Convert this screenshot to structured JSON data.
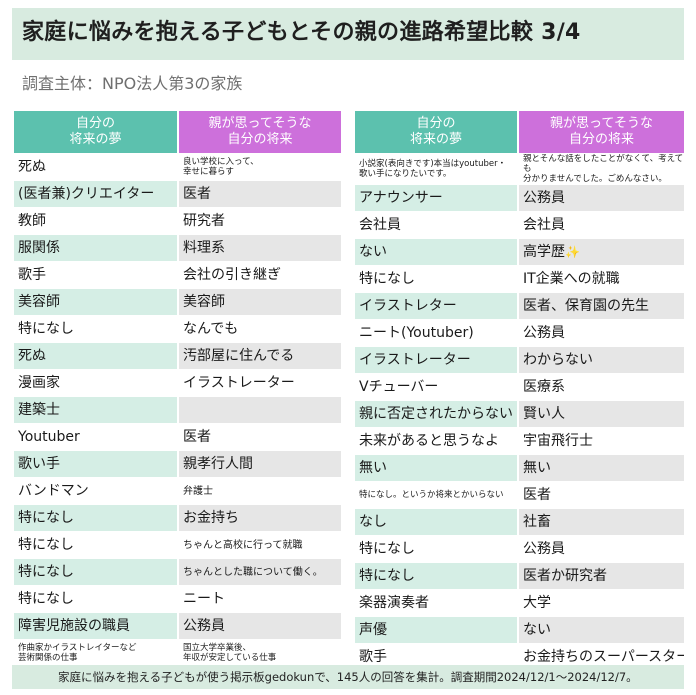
{
  "title": "家庭に悩みを抱える子どもとその親の進路希望比較 3/4",
  "subtitle": "調査主体：NPO法人第3の家族",
  "headers": {
    "dream": "自分の\n将来の夢",
    "parent": "親が思ってそうな\n自分の将来"
  },
  "left_rows": [
    {
      "dream": "死ぬ",
      "parent": "良い学校に入って、\n幸せに暮らす"
    },
    {
      "dream": "(医者兼)クリエイター",
      "parent": "医者"
    },
    {
      "dream": "教師",
      "parent": "研究者"
    },
    {
      "dream": "服関係",
      "parent": "料理系"
    },
    {
      "dream": "歌手",
      "parent": "会社の引き継ぎ"
    },
    {
      "dream": "美容師",
      "parent": "美容師"
    },
    {
      "dream": "特になし",
      "parent": "なんでも"
    },
    {
      "dream": "死ぬ",
      "parent": "汚部屋に住んでる"
    },
    {
      "dream": "漫画家",
      "parent": "イラストレーター"
    },
    {
      "dream": "建築士",
      "parent": ""
    },
    {
      "dream": "Youtuber",
      "parent": "医者"
    },
    {
      "dream": "歌い手",
      "parent": "親孝行人間"
    },
    {
      "dream": "バンドマン",
      "parent": "弁護士"
    },
    {
      "dream": "特になし",
      "parent": "お金持ち"
    },
    {
      "dream": "特になし",
      "parent": "ちゃんと高校に行って就職"
    },
    {
      "dream": "特になし",
      "parent": "ちゃんとした職について働く。"
    },
    {
      "dream": "特になし",
      "parent": "ニート"
    },
    {
      "dream": "障害児施設の職員",
      "parent": "公務員"
    },
    {
      "dream": "作曲家かイラストレイターなど\n芸術関係の仕事",
      "parent": "国立大学卒業後、\n年収が安定している仕事"
    }
  ],
  "right_rows": [
    {
      "dream": "小説家(表向きです)本当はyoutuber・\n歌い手になりたいです。",
      "parent": "親とそんな話をしたことがなくて、考えても\n分かりませんでした。ごめんなさい。"
    },
    {
      "dream": "アナウンサー",
      "parent": "公務員"
    },
    {
      "dream": "会社員",
      "parent": "会社員"
    },
    {
      "dream": "ない",
      "parent": "高学歴✨"
    },
    {
      "dream": "特になし",
      "parent": "IT企業への就職"
    },
    {
      "dream": "イラストレター",
      "parent": "医者、保育園の先生"
    },
    {
      "dream": "ニート(Youtuber)",
      "parent": "公務員"
    },
    {
      "dream": "イラストレーター",
      "parent": "わからない"
    },
    {
      "dream": "Vチューバー",
      "parent": "医療系"
    },
    {
      "dream": "親に否定されたからない",
      "parent": "賢い人"
    },
    {
      "dream": "未来があると思うなよ",
      "parent": "宇宙飛行士"
    },
    {
      "dream": "無い",
      "parent": "無い"
    },
    {
      "dream": "特になし。というか将来とかいらない",
      "parent": "医者"
    },
    {
      "dream": "なし",
      "parent": "社畜"
    },
    {
      "dream": "特になし",
      "parent": "公務員"
    },
    {
      "dream": "特になし",
      "parent": "医者か研究者"
    },
    {
      "dream": "楽器演奏者",
      "parent": "大学"
    },
    {
      "dream": "声優",
      "parent": "ない"
    },
    {
      "dream": "歌手",
      "parent": "お金持ちのスーパースター"
    }
  ],
  "footer": "家庭に悩みを抱える子どもが使う掲示板gedokunで、145人の回答を集計。調査期間2024/12/1〜2024/12/7。",
  "colors": {
    "title_bg": "#d8ebe0",
    "dream_header": "#5cc1ae",
    "parent_header": "#cd70db",
    "row_tint": "#d5eee5",
    "parent_tint": "#e6e6e6"
  }
}
